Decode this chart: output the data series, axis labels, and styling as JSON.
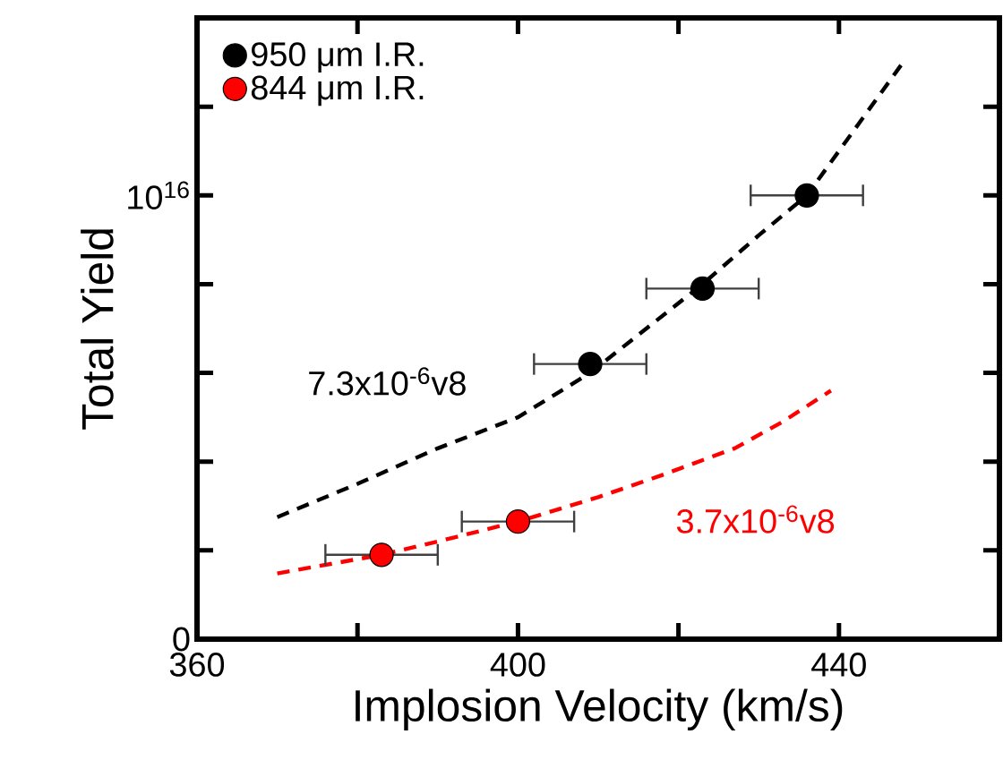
{
  "chart_data": {
    "type": "scatter",
    "xlabel": "Implosion Velocity (km/s)",
    "ylabel": "Total Yield",
    "xlim": [
      360,
      460
    ],
    "xticks": [
      360,
      {
        "value": 380,
        "label": null
      },
      400,
      {
        "value": 420,
        "label": null
      },
      440
    ],
    "ylim": [
      0,
      1.4e+16
    ],
    "yticks": [
      0,
      {
        "value": 2000000000000000.0,
        "label": null
      },
      {
        "value": 4000000000000000.0,
        "label": null
      },
      {
        "value": 6000000000000000.0,
        "label": null
      },
      {
        "value": 8000000000000000.0,
        "label": null
      },
      {
        "value": 1e+16,
        "label": "10$^{16}$"
      },
      {
        "value": 1.2e+16,
        "label": null
      }
    ],
    "legend": "top left",
    "series": [
      {
        "name": "950 μm I.R.",
        "color": "#000000",
        "marker": "circle",
        "x": [
          409,
          423,
          436
        ],
        "values": [
          6200000000000000.0,
          7900000000000000.0,
          1e+16
        ],
        "xerrors": [
          7,
          7,
          7
        ]
      },
      {
        "name": "844 μm I.R.",
        "color": "#ff0000",
        "marker": "circle",
        "x": [
          383,
          400
        ],
        "values": [
          1900000000000000.0,
          2650000000000000.0
        ],
        "xerrors": [
          7,
          7
        ]
      },
      {
        "type": "line",
        "color": "#000000",
        "line_style": "dashed",
        "marker": "none",
        "x": [
          370,
          380,
          390,
          400,
          409,
          416,
          423,
          430,
          436,
          442,
          448
        ],
        "values": [
          2750000000000000.0,
          3500000000000000.0,
          4300000000000000.0,
          5000000000000000.0,
          6000000000000000.0,
          7000000000000000.0,
          8000000000000000.0,
          9100000000000000.0,
          1e+16,
          1.15e+16,
          1.3e+16
        ]
      },
      {
        "type": "line",
        "color": "#ff0000",
        "line_style": "dashed",
        "marker": "none",
        "x": [
          370,
          383,
          390,
          400,
          410,
          418,
          427,
          433,
          439
        ],
        "values": [
          1480000000000000.0,
          1900000000000000.0,
          2200000000000000.0,
          2650000000000000.0,
          3200000000000000.0,
          3700000000000000.0,
          4300000000000000.0,
          4900000000000000.0,
          5600000000000000.0
        ]
      }
    ],
    "annotations": [
      "7.3x10$^{-6}$v8",
      "3.7x10$^{-6}$v8"
    ]
  }
}
